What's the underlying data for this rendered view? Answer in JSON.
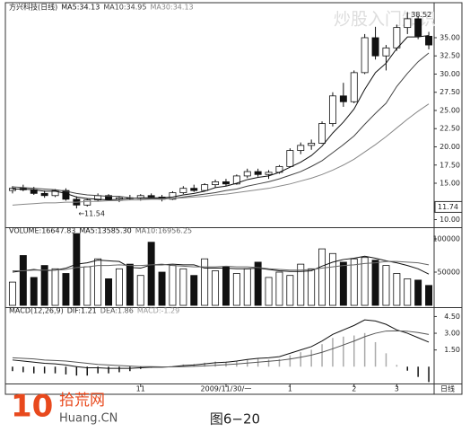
{
  "chart_data": [
    {
      "type": "candlestick",
      "title": "方兴科技(日线)",
      "ohlc": [
        [
          14.0,
          14.6,
          13.6,
          14.3
        ],
        [
          14.3,
          14.8,
          13.9,
          14.1
        ],
        [
          14.1,
          14.5,
          13.4,
          13.6
        ],
        [
          13.6,
          14.0,
          13.0,
          13.3
        ],
        [
          13.3,
          14.2,
          13.1,
          14.0
        ],
        [
          14.0,
          14.3,
          12.6,
          12.8
        ],
        [
          12.8,
          13.2,
          11.54,
          12.0
        ],
        [
          12.0,
          12.9,
          11.8,
          12.7
        ],
        [
          12.7,
          13.6,
          12.5,
          13.3
        ],
        [
          13.3,
          13.5,
          12.6,
          12.8
        ],
        [
          12.8,
          13.2,
          12.4,
          13.0
        ],
        [
          13.0,
          13.4,
          12.7,
          12.9
        ],
        [
          12.9,
          13.5,
          12.6,
          13.3
        ],
        [
          13.3,
          13.6,
          12.9,
          13.1
        ],
        [
          13.1,
          13.4,
          12.5,
          12.8
        ],
        [
          12.8,
          13.9,
          12.7,
          13.7
        ],
        [
          13.7,
          14.6,
          13.5,
          14.3
        ],
        [
          14.3,
          14.8,
          13.8,
          14.0
        ],
        [
          14.0,
          15.0,
          13.9,
          14.8
        ],
        [
          14.8,
          15.5,
          14.4,
          15.2
        ],
        [
          15.2,
          15.6,
          14.6,
          14.9
        ],
        [
          14.9,
          16.2,
          14.8,
          16.0
        ],
        [
          16.0,
          17.0,
          15.7,
          16.6
        ],
        [
          16.6,
          17.0,
          15.9,
          16.2
        ],
        [
          16.2,
          16.8,
          15.6,
          16.5
        ],
        [
          16.5,
          17.5,
          16.3,
          17.3
        ],
        [
          17.3,
          19.8,
          17.2,
          19.5
        ],
        [
          19.5,
          20.6,
          19.0,
          20.2
        ],
        [
          20.2,
          21.0,
          19.6,
          20.5
        ],
        [
          20.5,
          23.5,
          20.4,
          23.2
        ],
        [
          23.2,
          27.5,
          22.8,
          27.0
        ],
        [
          27.0,
          28.8,
          25.5,
          26.2
        ],
        [
          26.2,
          30.5,
          26.0,
          30.2
        ],
        [
          30.2,
          35.5,
          30.0,
          35.0
        ],
        [
          35.0,
          36.5,
          32.0,
          32.5
        ],
        [
          32.5,
          34.0,
          30.5,
          33.6
        ],
        [
          33.6,
          36.8,
          33.2,
          36.4
        ],
        [
          36.4,
          38.52,
          35.5,
          37.6
        ],
        [
          37.6,
          38.0,
          34.8,
          35.2
        ],
        [
          35.2,
          35.8,
          33.4,
          34.0
        ]
      ],
      "series": [
        {
          "name": "MA5:34.13",
          "color": "#111111",
          "values": [
            14.2,
            14.2,
            14.1,
            13.9,
            13.9,
            13.6,
            13.1,
            12.9,
            12.8,
            12.7,
            12.8,
            12.9,
            13.0,
            13.0,
            13.0,
            13.1,
            13.4,
            13.6,
            13.9,
            14.4,
            14.6,
            15.0,
            15.5,
            15.8,
            16.0,
            16.5,
            17.2,
            17.9,
            18.8,
            20.1,
            21.9,
            23.4,
            25.2,
            27.9,
            30.2,
            31.5,
            33.5,
            35.1,
            35.1,
            35.3
          ]
        },
        {
          "name": "MA10:34.95",
          "color": "#444444",
          "values": [
            14.5,
            14.4,
            14.3,
            14.2,
            14.1,
            13.9,
            13.6,
            13.4,
            13.3,
            13.2,
            13.2,
            13.0,
            12.9,
            12.9,
            12.9,
            12.9,
            13.1,
            13.3,
            13.5,
            13.7,
            14.0,
            14.2,
            14.6,
            14.9,
            15.2,
            15.6,
            16.1,
            16.6,
            17.3,
            18.1,
            19.2,
            20.3,
            21.5,
            23.1,
            24.6,
            26.0,
            28.3,
            30.1,
            31.7,
            32.9
          ]
        },
        {
          "name": "MA30:34.13",
          "color": "#888888",
          "values": [
            12.0,
            12.1,
            12.2,
            12.3,
            12.3,
            12.4,
            12.4,
            12.5,
            12.5,
            12.6,
            12.6,
            12.7,
            12.7,
            12.8,
            12.8,
            12.9,
            13.0,
            13.1,
            13.2,
            13.4,
            13.5,
            13.7,
            13.9,
            14.1,
            14.3,
            14.6,
            14.9,
            15.3,
            15.7,
            16.2,
            16.8,
            17.5,
            18.3,
            19.3,
            20.3,
            21.4,
            22.6,
            23.8,
            24.9,
            25.9
          ]
        }
      ],
      "ylim": [
        9.2,
        38.7
      ],
      "yticks": [
        {
          "value": 10,
          "label": "10.00"
        },
        {
          "value": 15,
          "label": "15.00"
        },
        {
          "value": 17.5,
          "label": "17.50"
        },
        {
          "value": 20,
          "label": "20.00"
        },
        {
          "value": 22.5,
          "label": "22.50"
        },
        {
          "value": 25,
          "label": "25.00"
        },
        {
          "value": 27.5,
          "label": "27.50"
        },
        {
          "value": 30,
          "label": "30.00"
        },
        {
          "value": 32.5,
          "label": "32.50"
        },
        {
          "value": 35,
          "label": "35.00"
        }
      ],
      "last_price": {
        "value": 11.74,
        "label": "11.74"
      },
      "low_label": "←11.54",
      "high_label": "38.52",
      "categories": [
        null,
        null,
        null,
        null,
        null,
        null,
        null,
        null,
        null,
        null,
        null,
        null,
        "11",
        null,
        null,
        null,
        null,
        null,
        null,
        null,
        "2009/11/30/一",
        null,
        null,
        null,
        null,
        null,
        "1",
        null,
        null,
        null,
        null,
        null,
        "2",
        null,
        null,
        null,
        "3",
        null,
        null,
        null
      ],
      "period_label": "日线"
    },
    {
      "type": "bar",
      "title": "VOLUME:16647.83",
      "values": [
        35000,
        75000,
        42000,
        60000,
        55000,
        48000,
        108000,
        58000,
        70000,
        40000,
        55000,
        62000,
        45000,
        95000,
        50000,
        60000,
        55000,
        45000,
        70000,
        52000,
        58000,
        48000,
        55000,
        65000,
        42000,
        50000,
        45000,
        62000,
        55000,
        85000,
        78000,
        65000,
        70000,
        72000,
        68000,
        60000,
        48000,
        40000,
        38000,
        30000
      ],
      "series": [
        {
          "name": "MA5:13585.30",
          "color": "#111111",
          "values": [
            50000,
            52000,
            54000,
            52000,
            53000,
            56000,
            62000,
            64000,
            68000,
            67000,
            66000,
            57000,
            56000,
            61000,
            61000,
            62000,
            61000,
            61000,
            56000,
            56000,
            56000,
            55000,
            55000,
            56000,
            54000,
            52000,
            51000,
            51000,
            52000,
            59000,
            65000,
            69000,
            71000,
            74000,
            71000,
            67000,
            64000,
            60000,
            55000,
            47000
          ]
        },
        {
          "name": "MA10:16956.25",
          "color": "#666666",
          "values": [
            52000,
            52000,
            53000,
            53000,
            53000,
            54000,
            57000,
            58000,
            60000,
            60000,
            61000,
            60000,
            60000,
            61000,
            62000,
            60000,
            59000,
            58000,
            58000,
            58000,
            59000,
            58000,
            58000,
            57000,
            55000,
            54000,
            53000,
            53000,
            54000,
            56000,
            58000,
            60000,
            61000,
            63000,
            64000,
            66000,
            66000,
            65000,
            64000,
            61000
          ]
        }
      ],
      "ylim": [
        0,
        113500
      ],
      "yticks": [
        50000,
        100000
      ]
    },
    {
      "type": "macd",
      "title": "MACD(12,26,9)",
      "series": [
        {
          "name": "DIF:1.21",
          "color": "#111111",
          "values": [
            0.6,
            0.5,
            0.4,
            0.3,
            0.25,
            0.15,
            0.0,
            -0.1,
            -0.1,
            -0.15,
            -0.15,
            -0.15,
            -0.1,
            -0.05,
            -0.05,
            0.0,
            0.1,
            0.15,
            0.25,
            0.35,
            0.4,
            0.5,
            0.65,
            0.75,
            0.8,
            0.9,
            1.2,
            1.5,
            1.8,
            2.3,
            2.9,
            3.3,
            3.7,
            4.2,
            4.1,
            3.8,
            3.3,
            3.0,
            2.6,
            2.2
          ]
        },
        {
          "name": "DEA:1.86",
          "color": "#555555",
          "values": [
            0.8,
            0.75,
            0.7,
            0.6,
            0.55,
            0.5,
            0.4,
            0.3,
            0.2,
            0.15,
            0.1,
            0.05,
            0.0,
            0.0,
            -0.02,
            -0.02,
            0.0,
            0.03,
            0.07,
            0.12,
            0.18,
            0.24,
            0.32,
            0.4,
            0.48,
            0.56,
            0.69,
            0.85,
            1.04,
            1.29,
            1.61,
            1.95,
            2.3,
            2.69,
            3.0,
            3.2,
            3.22,
            3.18,
            3.06,
            2.89
          ]
        },
        {
          "name": "MACD:-1.29",
          "color": "#999999",
          "values": [
            -0.4,
            -0.5,
            -0.6,
            -0.6,
            -0.6,
            -0.7,
            -0.8,
            -0.8,
            -0.6,
            -0.6,
            -0.5,
            -0.4,
            -0.2,
            -0.1,
            -0.06,
            0.04,
            0.2,
            0.24,
            0.36,
            0.46,
            0.44,
            0.52,
            0.66,
            0.7,
            0.64,
            0.68,
            1.02,
            1.3,
            1.52,
            2.02,
            2.58,
            2.7,
            2.8,
            3.02,
            2.2,
            1.2,
            0.16,
            -0.36,
            -0.92,
            -1.38
          ]
        }
      ],
      "ylim": [
        -1.35,
        5.1
      ],
      "yticks": [
        {
          "value": 1.5,
          "label": "1.50"
        },
        {
          "value": 3,
          "label": "3.00"
        },
        {
          "value": 4.5,
          "label": "4.50"
        }
      ]
    }
  ],
  "watermark": "炒股入门知识",
  "logo": {
    "number": "10",
    "name": "拾荒网",
    "site": "Huang.CN"
  },
  "caption": "图6−20"
}
